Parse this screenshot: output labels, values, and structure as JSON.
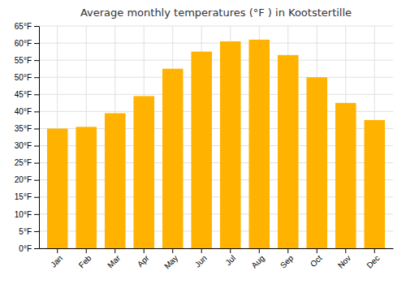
{
  "chart_data": {
    "type": "bar",
    "title": "Average monthly temperatures (°F ) in Kootstertille",
    "categories": [
      "Jan",
      "Feb",
      "Mar",
      "Apr",
      "May",
      "Jun",
      "Jul",
      "Aug",
      "Sep",
      "Oct",
      "Nov",
      "Dec"
    ],
    "values": [
      35,
      35.5,
      39.5,
      44.5,
      52.5,
      57.5,
      60.5,
      61,
      56.5,
      50,
      42.5,
      37.5
    ],
    "color": "#FFB300",
    "ylim": [
      0,
      65
    ],
    "yticks": [
      {
        "value": 0,
        "label": "0°F"
      },
      {
        "value": 5,
        "label": "5°F"
      },
      {
        "value": 10,
        "label": "10°F"
      },
      {
        "value": 15,
        "label": "15°F"
      },
      {
        "value": 20,
        "label": "20°F"
      },
      {
        "value": 25,
        "label": "25°F"
      },
      {
        "value": 30,
        "label": "30°F"
      },
      {
        "value": 35,
        "label": "35°F"
      },
      {
        "value": 40,
        "label": "40°F"
      },
      {
        "value": 45,
        "label": "45°F"
      },
      {
        "value": 50,
        "label": "50°F"
      },
      {
        "value": 55,
        "label": "55°F"
      },
      {
        "value": 60,
        "label": "60°F"
      },
      {
        "value": 65,
        "label": "65°F"
      }
    ],
    "grid": true
  }
}
